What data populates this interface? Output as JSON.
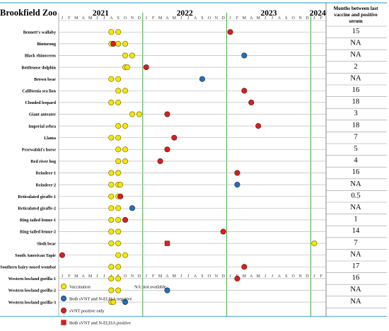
{
  "chart_data": {
    "type": "scatter",
    "title": "Brookfield Zoo",
    "years": [
      "2021",
      "2022",
      "2023",
      "2024"
    ],
    "month_letters": [
      "J",
      "F",
      "M",
      "A",
      "M",
      "J",
      "J",
      "A",
      "S",
      "O",
      "N",
      "D"
    ],
    "x_start": "2021-01",
    "x_end": "2024-02",
    "right_column_header": "Months between last vaccine and positive serum",
    "na_note": "NA: not available",
    "legend": [
      {
        "key": "vaccination",
        "label": "Vaccination",
        "shape": "circle",
        "color": "#f5e600"
      },
      {
        "key": "negative",
        "label": "Both sVNT and N-ELISA negative",
        "shape": "circle",
        "color": "#1f6fc5"
      },
      {
        "key": "svnt",
        "label": "sVNT positive only",
        "shape": "circle",
        "color": "#e31a1c"
      },
      {
        "key": "both",
        "label": "Both sVNT and N-ELISA positive",
        "shape": "square",
        "color": "#e31a1c"
      }
    ],
    "colors": {
      "vaccination": "#f5e600",
      "negative": "#1f6fc5",
      "svnt": "#e31a1c",
      "both": "#e31a1c",
      "grid_green": "#3aa83a",
      "rule_blue": "#6fb7e0"
    },
    "animals": [
      {
        "name": "Bennett's wallaby",
        "months": "15",
        "events": [
          {
            "date": "2021-08",
            "type": "vaccination"
          },
          {
            "date": "2021-09",
            "type": "vaccination"
          },
          {
            "date": "2023-01",
            "type": "svnt"
          }
        ]
      },
      {
        "name": "Binturong",
        "months": "NA",
        "events": [
          {
            "date": "2021-08",
            "type": "vaccination"
          },
          {
            "date": "2021-08",
            "type": "svnt"
          },
          {
            "date": "2021-09",
            "type": "vaccination"
          },
          {
            "date": "2021-10",
            "type": "vaccination"
          }
        ]
      },
      {
        "name": "Black rhinoceros",
        "months": "NA",
        "events": [
          {
            "date": "2021-10",
            "type": "vaccination"
          },
          {
            "date": "2021-11",
            "type": "vaccination"
          },
          {
            "date": "2023-03",
            "type": "negative"
          }
        ]
      },
      {
        "name": "Bottlenose dolphin",
        "months": "2",
        "events": [
          {
            "date": "2021-10",
            "type": "vaccination"
          },
          {
            "date": "2021-10",
            "type": "vaccination"
          },
          {
            "date": "2022-01",
            "type": "svnt"
          }
        ]
      },
      {
        "name": "Brown bear",
        "months": "NA",
        "events": [
          {
            "date": "2021-08",
            "type": "vaccination"
          },
          {
            "date": "2021-09",
            "type": "vaccination"
          },
          {
            "date": "2022-09",
            "type": "negative"
          }
        ]
      },
      {
        "name": "California sea lion",
        "months": "16",
        "events": [
          {
            "date": "2021-09",
            "type": "vaccination"
          },
          {
            "date": "2021-10",
            "type": "vaccination"
          },
          {
            "date": "2023-03",
            "type": "svnt"
          }
        ]
      },
      {
        "name": "Clouded leopard",
        "months": "18",
        "events": [
          {
            "date": "2021-08",
            "type": "vaccination"
          },
          {
            "date": "2021-09",
            "type": "vaccination"
          },
          {
            "date": "2023-04",
            "type": "svnt"
          }
        ]
      },
      {
        "name": "Giant anteater",
        "months": "3",
        "events": [
          {
            "date": "2021-11",
            "type": "vaccination"
          },
          {
            "date": "2021-12",
            "type": "vaccination"
          },
          {
            "date": "2022-04",
            "type": "svnt"
          }
        ]
      },
      {
        "name": "Imperial zebra",
        "months": "18",
        "events": [
          {
            "date": "2021-09",
            "type": "vaccination"
          },
          {
            "date": "2021-10",
            "type": "vaccination"
          },
          {
            "date": "2023-05",
            "type": "svnt"
          }
        ]
      },
      {
        "name": "Llama",
        "months": "7",
        "events": [
          {
            "date": "2021-08",
            "type": "vaccination"
          },
          {
            "date": "2021-09",
            "type": "vaccination"
          },
          {
            "date": "2022-05",
            "type": "svnt"
          }
        ]
      },
      {
        "name": "Przewalski's horse",
        "months": "5",
        "events": [
          {
            "date": "2021-09",
            "type": "vaccination"
          },
          {
            "date": "2021-10",
            "type": "vaccination"
          },
          {
            "date": "2022-04",
            "type": "svnt"
          }
        ]
      },
      {
        "name": "Red river hog",
        "months": "4",
        "events": [
          {
            "date": "2021-09",
            "type": "vaccination"
          },
          {
            "date": "2021-10",
            "type": "vaccination"
          },
          {
            "date": "2022-03",
            "type": "svnt"
          }
        ]
      },
      {
        "name": "Reindeer-1",
        "months": "16",
        "events": [
          {
            "date": "2021-08",
            "type": "vaccination"
          },
          {
            "date": "2021-09",
            "type": "vaccination"
          },
          {
            "date": "2023-02",
            "type": "svnt"
          }
        ]
      },
      {
        "name": "Reindeer-2",
        "months": "NA",
        "events": [
          {
            "date": "2021-08",
            "type": "vaccination"
          },
          {
            "date": "2021-09",
            "type": "vaccination"
          },
          {
            "date": "2021-09",
            "type": "vaccination"
          },
          {
            "date": "2023-02",
            "type": "negative"
          }
        ]
      },
      {
        "name": "Reticulated giraffe-1",
        "months": "0.5",
        "events": [
          {
            "date": "2021-08",
            "type": "vaccination"
          },
          {
            "date": "2021-09",
            "type": "vaccination"
          },
          {
            "date": "2021-09",
            "type": "svnt"
          }
        ]
      },
      {
        "name": "Reticulated giraffe-2",
        "months": "NA",
        "events": [
          {
            "date": "2021-08",
            "type": "vaccination"
          },
          {
            "date": "2021-09",
            "type": "vaccination"
          },
          {
            "date": "2021-11",
            "type": "negative"
          }
        ]
      },
      {
        "name": "Ring-tailed lemur-1",
        "months": "1",
        "events": [
          {
            "date": "2021-08",
            "type": "vaccination"
          },
          {
            "date": "2021-09",
            "type": "vaccination"
          },
          {
            "date": "2021-10",
            "type": "svnt"
          }
        ]
      },
      {
        "name": "Ring-tailed lemur-2",
        "months": "14",
        "events": [
          {
            "date": "2021-08",
            "type": "vaccination"
          },
          {
            "date": "2021-09",
            "type": "vaccination"
          },
          {
            "date": "2022-12",
            "type": "svnt"
          }
        ]
      },
      {
        "name": "Sloth bear",
        "months": "7",
        "events": [
          {
            "date": "2021-08",
            "type": "vaccination"
          },
          {
            "date": "2021-09",
            "type": "vaccination"
          },
          {
            "date": "2022-04",
            "type": "both"
          },
          {
            "date": "2024-01",
            "type": "vaccination"
          }
        ]
      },
      {
        "name": "South American Tapir",
        "months": "NA",
        "events": [
          {
            "date": "2021-01",
            "type": "svnt"
          },
          {
            "date": "2021-09",
            "type": "vaccination"
          },
          {
            "date": "2021-10",
            "type": "vaccination"
          }
        ]
      },
      {
        "name": "Southern hairy-nosed wombat",
        "months": "17",
        "events": [
          {
            "date": "2021-08",
            "type": "vaccination"
          },
          {
            "date": "2021-09",
            "type": "vaccination"
          },
          {
            "date": "2023-03",
            "type": "svnt"
          }
        ]
      },
      {
        "name": "Western lowland gorilla-1",
        "months": "16",
        "events": [
          {
            "date": "2021-08",
            "type": "vaccination"
          },
          {
            "date": "2021-09",
            "type": "vaccination"
          },
          {
            "date": "2023-02",
            "type": "svnt"
          }
        ]
      },
      {
        "name": "Western lowland gorilla-2",
        "months": "NA",
        "events": [
          {
            "date": "2021-08",
            "type": "vaccination"
          },
          {
            "date": "2021-09",
            "type": "vaccination"
          },
          {
            "date": "2022-04",
            "type": "negative"
          }
        ]
      },
      {
        "name": "Western lowland gorilla-3",
        "months": "NA",
        "events": [
          {
            "date": "2021-08",
            "type": "vaccination"
          },
          {
            "date": "2021-08",
            "type": "vaccination"
          },
          {
            "date": "2021-10",
            "type": "negative"
          }
        ]
      }
    ]
  }
}
